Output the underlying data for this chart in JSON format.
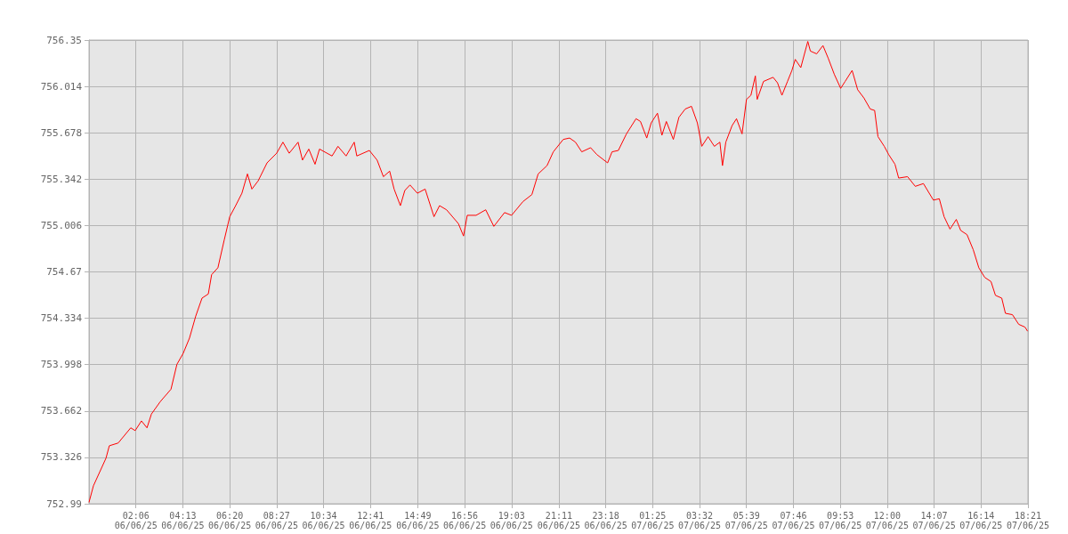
{
  "chart_data": {
    "type": "line",
    "color": "#ff0000",
    "grid": true,
    "marker": "none",
    "line_style": "solid",
    "xlim": [
      "--06-05T23:59",
      "--06-07T18:21"
    ],
    "xticks": [
      {
        "value": "--06-06T02:06",
        "label": "02:06\n06/06/25"
      },
      {
        "value": "--06-06T04:13",
        "label": "04:13\n06/06/25"
      },
      {
        "value": "--06-06T06:20",
        "label": "06:20\n06/06/25"
      },
      {
        "value": "--06-06T08:27",
        "label": "08:27\n06/06/25"
      },
      {
        "value": "--06-06T10:34",
        "label": "10:34\n06/06/25"
      },
      {
        "value": "--06-06T12:41",
        "label": "12:41\n06/06/25"
      },
      {
        "value": "--06-06T14:49",
        "label": "14:49\n06/06/25"
      },
      {
        "value": "--06-06T16:56",
        "label": "16:56\n06/06/25"
      },
      {
        "value": "--06-06T19:03",
        "label": "19:03\n06/06/25"
      },
      {
        "value": "--06-06T21:11",
        "label": "21:11\n06/06/25"
      },
      {
        "value": "--06-06T23:18",
        "label": "23:18\n06/06/25"
      },
      {
        "value": "--06-07T01:25",
        "label": "01:25\n07/06/25"
      },
      {
        "value": "--06-07T03:32",
        "label": "03:32\n07/06/25"
      },
      {
        "value": "--06-07T05:39",
        "label": "05:39\n07/06/25"
      },
      {
        "value": "--06-07T07:46",
        "label": "07:46\n07/06/25"
      },
      {
        "value": "--06-07T09:53",
        "label": "09:53\n07/06/25"
      },
      {
        "value": "--06-07T12:00",
        "label": "12:00\n07/06/25"
      },
      {
        "value": "--06-07T14:07",
        "label": "14:07\n07/06/25"
      },
      {
        "value": "--06-07T16:14",
        "label": "16:14\n07/06/25"
      },
      {
        "value": "--06-07T18:21",
        "label": "18:21\n07/06/25"
      }
    ],
    "ylim": [
      752.99,
      756.35
    ],
    "yticks": [
      752.99,
      753.326,
      753.662,
      753.998,
      754.334,
      754.67,
      755.006,
      755.342,
      755.678,
      756.014,
      756.35
    ],
    "x": [
      "--06-05T23:59",
      "--06-06T00:11",
      "--06-06T00:45",
      "--06-06T00:54",
      "--06-06T01:18",
      "--06-06T01:52",
      "--06-06T02:04",
      "--06-06T02:21",
      "--06-06T02:36",
      "--06-06T02:48",
      "--06-06T03:12",
      "--06-06T03:41",
      "--06-06T03:57",
      "--06-06T04:14",
      "--06-06T04:31",
      "--06-06T04:48",
      "--06-06T05:05",
      "--06-06T05:22",
      "--06-06T05:31",
      "--06-06T05:48",
      "--06-06T06:05",
      "--06-06T06:20",
      "--06-06T06:36",
      "--06-06T06:53",
      "--06-06T07:08",
      "--06-06T07:20",
      "--06-06T07:37",
      "--06-06T08:01",
      "--06-06T08:27",
      "--06-06T08:44",
      "--06-06T09:01",
      "--06-06T09:25",
      "--06-06T09:37",
      "--06-06T09:54",
      "--06-06T10:11",
      "--06-06T10:23",
      "--06-06T10:57",
      "--06-06T11:13",
      "--06-06T11:35",
      "--06-06T11:57",
      "--06-06T12:04",
      "--06-06T12:38",
      "--06-06T12:59",
      "--06-06T13:16",
      "--06-06T13:33",
      "--06-06T13:45",
      "--06-06T14:02",
      "--06-06T14:14",
      "--06-06T14:28",
      "--06-06T14:48",
      "--06-06T15:09",
      "--06-06T15:33",
      "--06-06T15:48",
      "--06-06T16:07",
      "--06-06T16:39",
      "--06-06T16:53",
      "--06-06T17:03",
      "--06-06T17:27",
      "--06-06T17:53",
      "--06-06T18:15",
      "--06-06T18:44",
      "--06-06T19:03",
      "--06-06T19:34",
      "--06-06T19:58",
      "--06-06T20:15",
      "--06-06T20:39",
      "--06-06T20:56",
      "--06-06T21:23",
      "--06-06T21:40",
      "--06-06T21:56",
      "--06-06T22:13",
      "--06-06T22:37",
      "--06-06T22:54",
      "--06-06T23:23",
      "--06-06T23:35",
      "--06-06T23:52",
      "--06-07T00:14",
      "--06-07T00:40",
      "--06-07T00:52",
      "--06-07T01:09",
      "--06-07T01:21",
      "--06-07T01:38",
      "--06-07T01:50",
      "--06-07T02:02",
      "--06-07T02:21",
      "--06-07T02:36",
      "--06-07T02:53",
      "--06-07T03:10",
      "--06-07T03:26",
      "--06-07T03:38",
      "--06-07T03:55",
      "--06-07T04:12",
      "--06-07T04:27",
      "--06-07T04:34",
      "--06-07T04:43",
      "--06-07T05:00",
      "--06-07T05:12",
      "--06-07T05:27",
      "--06-07T05:39",
      "--06-07T05:51",
      "--06-07T06:03",
      "--06-07T06:08",
      "--06-07T06:25",
      "--06-07T06:51",
      "--06-07T07:03",
      "--06-07T07:15",
      "--06-07T07:30",
      "--06-07T07:42",
      "--06-07T07:51",
      "--06-07T08:06",
      "--06-07T08:25",
      "--06-07T08:32",
      "--06-07T08:49",
      "--06-07T09:06",
      "--06-07T09:20",
      "--06-07T09:37",
      "--06-07T09:54",
      "--06-07T10:06",
      "--06-07T10:25",
      "--06-07T10:40",
      "--06-07T10:57",
      "--06-07T11:14",
      "--06-07T11:26",
      "--06-07T11:35",
      "--06-07T11:52",
      "--06-07T12:04",
      "--06-07T12:21",
      "--06-07T12:31",
      "--06-07T12:55",
      "--06-07T13:16",
      "--06-07T13:38",
      "--06-07T14:05",
      "--06-07T14:21",
      "--06-07T14:34",
      "--06-07T14:50",
      "--06-07T15:07",
      "--06-07T15:19",
      "--06-07T15:36",
      "--06-07T15:53",
      "--06-07T16:08",
      "--06-07T16:24",
      "--06-07T16:41",
      "--06-07T16:53",
      "--06-07T17:10",
      "--06-07T17:20",
      "--06-07T17:39",
      "--06-07T17:56",
      "--06-07T18:13",
      "--06-07T18:20"
    ],
    "values": [
      753.0,
      753.12,
      753.32,
      753.41,
      753.43,
      753.54,
      753.52,
      753.59,
      753.54,
      753.64,
      753.73,
      753.82,
      754.0,
      754.08,
      754.19,
      754.35,
      754.48,
      754.51,
      754.65,
      754.7,
      754.9,
      755.07,
      755.15,
      755.24,
      755.38,
      755.27,
      755.33,
      755.46,
      755.53,
      755.61,
      755.53,
      755.61,
      755.48,
      755.56,
      755.45,
      755.56,
      755.51,
      755.58,
      755.51,
      755.61,
      755.51,
      755.55,
      755.48,
      755.36,
      755.4,
      755.27,
      755.15,
      755.26,
      755.3,
      755.24,
      755.27,
      755.07,
      755.15,
      755.12,
      755.02,
      754.93,
      755.08,
      755.08,
      755.12,
      755.0,
      755.1,
      755.08,
      755.18,
      755.23,
      755.38,
      755.44,
      755.54,
      755.63,
      755.64,
      755.61,
      755.54,
      755.57,
      755.52,
      755.46,
      755.54,
      755.55,
      755.67,
      755.78,
      755.76,
      755.64,
      755.75,
      755.82,
      755.66,
      755.76,
      755.63,
      755.79,
      755.85,
      755.87,
      755.75,
      755.58,
      755.65,
      755.58,
      755.61,
      755.44,
      755.61,
      755.73,
      755.78,
      755.67,
      755.92,
      755.95,
      756.09,
      755.92,
      756.05,
      756.08,
      756.04,
      755.95,
      756.05,
      756.13,
      756.21,
      756.15,
      756.34,
      756.27,
      756.25,
      756.31,
      756.22,
      756.1,
      756.0,
      756.05,
      756.13,
      755.99,
      755.93,
      755.85,
      755.84,
      755.65,
      755.58,
      755.52,
      755.45,
      755.35,
      755.36,
      755.29,
      755.31,
      755.19,
      755.2,
      755.07,
      754.98,
      755.05,
      754.97,
      754.94,
      754.83,
      754.7,
      754.63,
      754.6,
      754.5,
      754.48,
      754.37,
      754.36,
      754.29,
      754.27,
      754.24
    ]
  }
}
